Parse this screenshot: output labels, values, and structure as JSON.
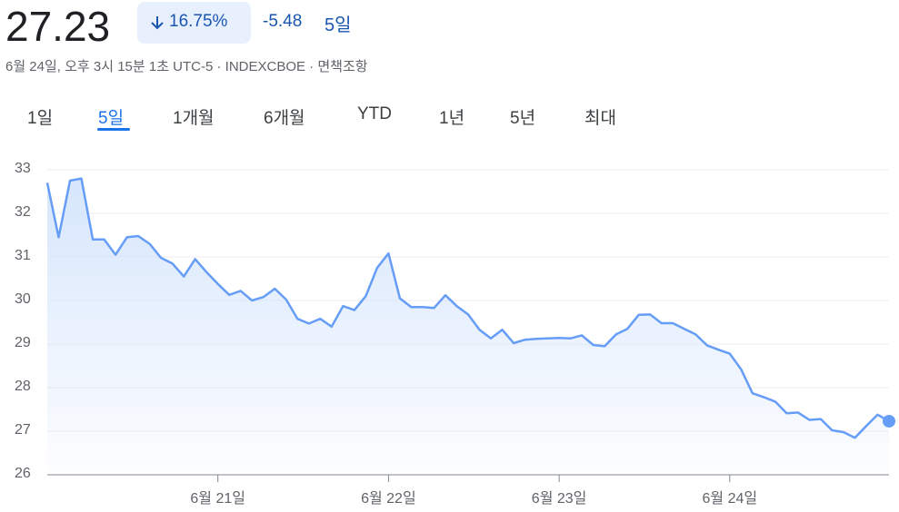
{
  "header": {
    "price": "27.23",
    "change_percent": "16.75%",
    "change": "-5.48",
    "period": "5일",
    "subtitle": "6월 24일, 오후 3시 15분 1초 UTC-5 · INDEXCBOE · 면책조항"
  },
  "tabs": [
    {
      "label": "1일"
    },
    {
      "label": "5일",
      "active": true
    },
    {
      "label": "1개월"
    },
    {
      "label": "6개월"
    },
    {
      "label": "YTD"
    },
    {
      "label": "1년"
    },
    {
      "label": "5년"
    },
    {
      "label": "최대"
    }
  ],
  "chart_data": {
    "type": "area",
    "color": "#669df6",
    "values": [
      32.7,
      31.45,
      32.75,
      32.8,
      31.4,
      31.4,
      31.05,
      31.45,
      31.48,
      31.3,
      30.98,
      30.85,
      30.55,
      30.95,
      30.65,
      30.38,
      30.13,
      30.22,
      30.0,
      30.08,
      30.27,
      30.02,
      29.58,
      29.47,
      29.58,
      29.4,
      29.87,
      29.78,
      30.1,
      30.75,
      31.08,
      30.05,
      29.85,
      29.85,
      29.83,
      30.12,
      29.87,
      29.68,
      29.33,
      29.13,
      29.33,
      29.02,
      29.1,
      29.12,
      29.13,
      29.14,
      29.13,
      29.2,
      28.98,
      28.95,
      29.22,
      29.35,
      29.67,
      29.68,
      29.48,
      29.48,
      29.35,
      29.22,
      28.97,
      28.87,
      28.78,
      28.42,
      27.87,
      27.78,
      27.68,
      27.41,
      27.43,
      27.26,
      27.28,
      27.02,
      26.98,
      26.85,
      27.12,
      27.38,
      27.23
    ],
    "xlim": [
      0,
      74
    ],
    "xticks": [
      {
        "value": 15,
        "label": "6월 21일"
      },
      {
        "value": 30,
        "label": "6월 22일"
      },
      {
        "value": 45,
        "label": "6월 23일"
      },
      {
        "value": 60,
        "label": "6월 24일"
      }
    ],
    "ylim": [
      26,
      33
    ],
    "yticks": [
      26,
      27,
      28,
      29,
      30,
      31,
      32,
      33
    ],
    "grid": true
  }
}
